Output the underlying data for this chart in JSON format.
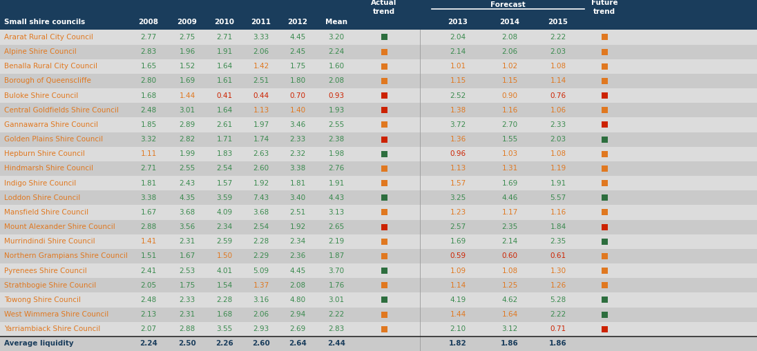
{
  "col1_header": "Small shire councils",
  "color_map": {
    "green": "#3a8a4e",
    "orange": "#e07820",
    "red": "#cc2200",
    "green_sq": "#2d6e3e",
    "orange_sq": "#e07820",
    "red_sq": "#cc2200"
  },
  "header_dark_bg": "#1a3d5c",
  "row_odd_bg": "#cacaca",
  "row_even_bg": "#dcdcdc",
  "avg_name_color": "#1a3d5c",
  "name_color": "#e07820",
  "avg_val_color": "#1a3d5c",
  "rows": [
    {
      "name": "Ararat Rural City Council",
      "values": [
        2.77,
        2.75,
        2.71,
        3.33,
        4.45,
        3.2,
        2.04,
        2.08,
        2.22
      ],
      "value_colors": [
        "green",
        "green",
        "green",
        "green",
        "green",
        "green",
        "green",
        "green",
        "green"
      ],
      "actual_trend": "green_sq",
      "future_trend": "orange_sq"
    },
    {
      "name": "Alpine Shire Council",
      "values": [
        2.83,
        1.96,
        1.91,
        2.06,
        2.45,
        2.24,
        2.14,
        2.06,
        2.03
      ],
      "value_colors": [
        "green",
        "green",
        "green",
        "green",
        "green",
        "green",
        "green",
        "green",
        "green"
      ],
      "actual_trend": "orange_sq",
      "future_trend": "orange_sq"
    },
    {
      "name": "Benalla Rural City Council",
      "values": [
        1.65,
        1.52,
        1.64,
        1.42,
        1.75,
        1.6,
        1.01,
        1.02,
        1.08
      ],
      "value_colors": [
        "green",
        "green",
        "green",
        "orange",
        "green",
        "green",
        "orange",
        "orange",
        "orange"
      ],
      "actual_trend": "orange_sq",
      "future_trend": "orange_sq"
    },
    {
      "name": "Borough of Queenscliffe",
      "values": [
        2.8,
        1.69,
        1.61,
        2.51,
        1.8,
        2.08,
        1.15,
        1.15,
        1.14
      ],
      "value_colors": [
        "green",
        "green",
        "green",
        "green",
        "green",
        "green",
        "orange",
        "orange",
        "orange"
      ],
      "actual_trend": "orange_sq",
      "future_trend": "orange_sq"
    },
    {
      "name": "Buloke Shire Council",
      "values": [
        1.68,
        1.44,
        0.41,
        0.44,
        0.7,
        0.93,
        2.52,
        0.9,
        0.76
      ],
      "value_colors": [
        "green",
        "orange",
        "red",
        "red",
        "red",
        "red",
        "green",
        "orange",
        "red"
      ],
      "actual_trend": "red_sq",
      "future_trend": "red_sq"
    },
    {
      "name": "Central Goldfields Shire Council",
      "values": [
        2.48,
        3.01,
        1.64,
        1.13,
        1.4,
        1.93,
        1.38,
        1.16,
        1.06
      ],
      "value_colors": [
        "green",
        "green",
        "green",
        "orange",
        "orange",
        "green",
        "orange",
        "orange",
        "orange"
      ],
      "actual_trend": "red_sq",
      "future_trend": "orange_sq"
    },
    {
      "name": "Gannawarra Shire Council",
      "values": [
        1.85,
        2.89,
        2.61,
        1.97,
        3.46,
        2.55,
        3.72,
        2.7,
        2.33
      ],
      "value_colors": [
        "green",
        "green",
        "green",
        "green",
        "green",
        "green",
        "green",
        "green",
        "green"
      ],
      "actual_trend": "orange_sq",
      "future_trend": "red_sq"
    },
    {
      "name": "Golden Plains Shire Council",
      "values": [
        3.32,
        2.82,
        1.71,
        1.74,
        2.33,
        2.38,
        1.36,
        1.55,
        2.03
      ],
      "value_colors": [
        "green",
        "green",
        "green",
        "green",
        "green",
        "green",
        "orange",
        "green",
        "green"
      ],
      "actual_trend": "red_sq",
      "future_trend": "green_sq"
    },
    {
      "name": "Hepburn Shire Council",
      "values": [
        1.11,
        1.99,
        1.83,
        2.63,
        2.32,
        1.98,
        0.96,
        1.03,
        1.08
      ],
      "value_colors": [
        "orange",
        "green",
        "green",
        "green",
        "green",
        "green",
        "red",
        "orange",
        "orange"
      ],
      "actual_trend": "green_sq",
      "future_trend": "orange_sq"
    },
    {
      "name": "Hindmarsh Shire Council",
      "values": [
        2.71,
        2.55,
        2.54,
        2.6,
        3.38,
        2.76,
        1.13,
        1.31,
        1.19
      ],
      "value_colors": [
        "green",
        "green",
        "green",
        "green",
        "green",
        "green",
        "orange",
        "orange",
        "orange"
      ],
      "actual_trend": "orange_sq",
      "future_trend": "orange_sq"
    },
    {
      "name": "Indigo Shire Council",
      "values": [
        1.81,
        2.43,
        1.57,
        1.92,
        1.81,
        1.91,
        1.57,
        1.69,
        1.91
      ],
      "value_colors": [
        "green",
        "green",
        "green",
        "green",
        "green",
        "green",
        "orange",
        "green",
        "green"
      ],
      "actual_trend": "orange_sq",
      "future_trend": "orange_sq"
    },
    {
      "name": "Loddon Shire Council",
      "values": [
        3.38,
        4.35,
        3.59,
        7.43,
        3.4,
        4.43,
        3.25,
        4.46,
        5.57
      ],
      "value_colors": [
        "green",
        "green",
        "green",
        "green",
        "green",
        "green",
        "green",
        "green",
        "green"
      ],
      "actual_trend": "green_sq",
      "future_trend": "green_sq"
    },
    {
      "name": "Mansfield Shire Council",
      "values": [
        1.67,
        3.68,
        4.09,
        3.68,
        2.51,
        3.13,
        1.23,
        1.17,
        1.16
      ],
      "value_colors": [
        "green",
        "green",
        "green",
        "green",
        "green",
        "green",
        "orange",
        "orange",
        "orange"
      ],
      "actual_trend": "orange_sq",
      "future_trend": "orange_sq"
    },
    {
      "name": "Mount Alexander Shire Council",
      "values": [
        2.88,
        3.56,
        2.34,
        2.54,
        1.92,
        2.65,
        2.57,
        2.35,
        1.84
      ],
      "value_colors": [
        "green",
        "green",
        "green",
        "green",
        "green",
        "green",
        "green",
        "green",
        "green"
      ],
      "actual_trend": "red_sq",
      "future_trend": "red_sq"
    },
    {
      "name": "Murrindindi Shire Council",
      "values": [
        1.41,
        2.31,
        2.59,
        2.28,
        2.34,
        2.19,
        1.69,
        2.14,
        2.35
      ],
      "value_colors": [
        "orange",
        "green",
        "green",
        "green",
        "green",
        "green",
        "green",
        "green",
        "green"
      ],
      "actual_trend": "orange_sq",
      "future_trend": "green_sq"
    },
    {
      "name": "Northern Grampians Shire Council",
      "values": [
        1.51,
        1.67,
        1.5,
        2.29,
        2.36,
        1.87,
        0.59,
        0.6,
        0.61
      ],
      "value_colors": [
        "green",
        "green",
        "orange",
        "green",
        "green",
        "green",
        "red",
        "red",
        "red"
      ],
      "actual_trend": "orange_sq",
      "future_trend": "orange_sq"
    },
    {
      "name": "Pyrenees Shire Council",
      "values": [
        2.41,
        2.53,
        4.01,
        5.09,
        4.45,
        3.7,
        1.09,
        1.08,
        1.3
      ],
      "value_colors": [
        "green",
        "green",
        "green",
        "green",
        "green",
        "green",
        "orange",
        "orange",
        "orange"
      ],
      "actual_trend": "green_sq",
      "future_trend": "orange_sq"
    },
    {
      "name": "Strathbogie Shire Council",
      "values": [
        2.05,
        1.75,
        1.54,
        1.37,
        2.08,
        1.76,
        1.14,
        1.25,
        1.26
      ],
      "value_colors": [
        "green",
        "green",
        "green",
        "orange",
        "green",
        "green",
        "orange",
        "orange",
        "orange"
      ],
      "actual_trend": "orange_sq",
      "future_trend": "orange_sq"
    },
    {
      "name": "Towong Shire Council",
      "values": [
        2.48,
        2.33,
        2.28,
        3.16,
        4.8,
        3.01,
        4.19,
        4.62,
        5.28
      ],
      "value_colors": [
        "green",
        "green",
        "green",
        "green",
        "green",
        "green",
        "green",
        "green",
        "green"
      ],
      "actual_trend": "green_sq",
      "future_trend": "green_sq"
    },
    {
      "name": "West Wimmera Shire Council",
      "values": [
        2.13,
        2.31,
        1.68,
        2.06,
        2.94,
        2.22,
        1.44,
        1.64,
        2.22
      ],
      "value_colors": [
        "green",
        "green",
        "green",
        "green",
        "green",
        "green",
        "orange",
        "orange",
        "green"
      ],
      "actual_trend": "orange_sq",
      "future_trend": "green_sq"
    },
    {
      "name": "Yarriambiack Shire Council",
      "values": [
        2.07,
        2.88,
        3.55,
        2.93,
        2.69,
        2.83,
        2.1,
        3.12,
        0.71
      ],
      "value_colors": [
        "green",
        "green",
        "green",
        "green",
        "green",
        "green",
        "green",
        "green",
        "red"
      ],
      "actual_trend": "orange_sq",
      "future_trend": "red_sq"
    }
  ],
  "avg_row": {
    "name": "Average liquidity",
    "values": [
      2.24,
      2.5,
      2.26,
      2.6,
      2.64,
      2.44,
      1.82,
      1.86,
      1.86
    ]
  }
}
